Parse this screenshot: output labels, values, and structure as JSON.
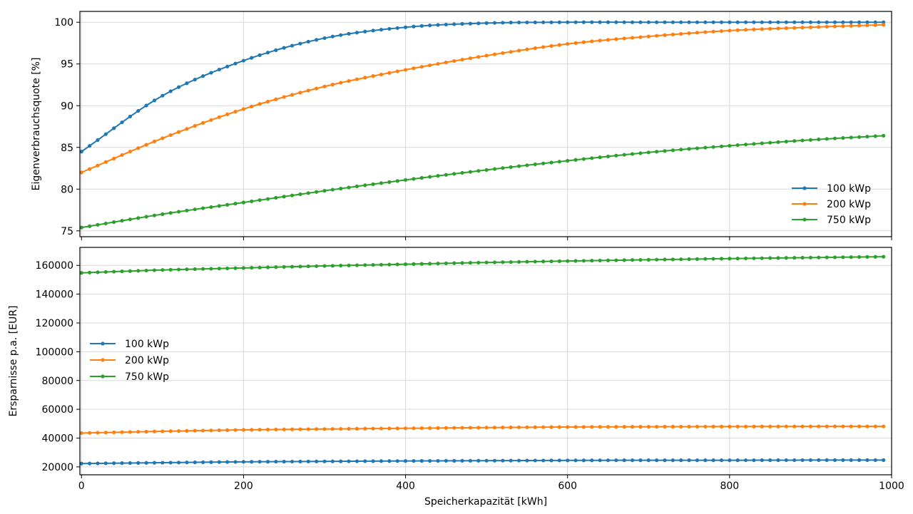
{
  "chart_data": [
    {
      "type": "line",
      "title": "",
      "xlabel": "",
      "ylabel": "Eigenverbrauchsquote [%]",
      "xlim": [
        -2,
        1000
      ],
      "ylim": [
        74.3,
        101.3
      ],
      "xticks": [
        0,
        200,
        400,
        600,
        800,
        1000
      ],
      "xtick_labels_visible": false,
      "yticks": [
        75,
        80,
        85,
        90,
        95,
        100
      ],
      "ytick_labels": [
        "75",
        "80",
        "85",
        "90",
        "95",
        "100"
      ],
      "grid": true,
      "legend": "lower-right",
      "x": [
        0,
        100,
        200,
        300,
        400,
        500,
        600,
        700,
        800,
        900,
        990
      ],
      "series": [
        {
          "name": "100 kWp",
          "color": "#1f77b4",
          "values": [
            84.5,
            91.2,
            95.4,
            98.1,
            99.4,
            99.9,
            100.0,
            100.0,
            100.0,
            100.0,
            100.0
          ]
        },
        {
          "name": "200 kWp",
          "color": "#ff7f0e",
          "values": [
            82.0,
            86.1,
            89.6,
            92.3,
            94.3,
            96.0,
            97.4,
            98.3,
            99.0,
            99.4,
            99.7
          ]
        },
        {
          "name": "750 kWp",
          "color": "#2ca02c",
          "values": [
            75.4,
            77.0,
            78.4,
            79.8,
            81.1,
            82.3,
            83.4,
            84.4,
            85.2,
            85.9,
            86.4
          ]
        }
      ]
    },
    {
      "type": "line",
      "title": "",
      "xlabel": "Speicherkapazität [kWh]",
      "ylabel": "Ersparnisse p.a. [EUR]",
      "xlim": [
        -2,
        1000
      ],
      "ylim": [
        14500,
        172500
      ],
      "xticks": [
        0,
        200,
        400,
        600,
        800,
        1000
      ],
      "xtick_labels": [
        "0",
        "200",
        "400",
        "600",
        "800",
        "1000"
      ],
      "yticks": [
        20000,
        40000,
        60000,
        80000,
        100000,
        120000,
        140000,
        160000
      ],
      "ytick_labels": [
        "20000",
        "40000",
        "60000",
        "80000",
        "100000",
        "120000",
        "140000",
        "160000"
      ],
      "grid": true,
      "legend": "center-left",
      "x": [
        0,
        100,
        200,
        300,
        400,
        500,
        600,
        700,
        800,
        900,
        990
      ],
      "series": [
        {
          "name": "100 kWp",
          "color": "#1f77b4",
          "values": [
            22300,
            22900,
            23500,
            23800,
            24100,
            24300,
            24500,
            24600,
            24600,
            24700,
            24700
          ]
        },
        {
          "name": "200 kWp",
          "color": "#ff7f0e",
          "values": [
            43500,
            44700,
            45700,
            46300,
            46800,
            47300,
            47700,
            47900,
            48000,
            48100,
            48100
          ]
        },
        {
          "name": "750 kWp",
          "color": "#2ca02c",
          "values": [
            154800,
            156800,
            158200,
            159600,
            160800,
            162000,
            163000,
            163900,
            164700,
            165400,
            166000
          ]
        }
      ]
    }
  ]
}
